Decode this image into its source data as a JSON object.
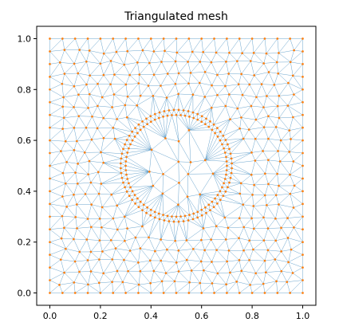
{
  "chart_data": {
    "type": "scatter",
    "subtype": "triangulated-mesh",
    "title": "Triangulated mesh",
    "xlabel": "",
    "ylabel": "",
    "xlim": [
      0.0,
      1.0
    ],
    "ylim": [
      0.0,
      1.0
    ],
    "x_ticks": [
      "0.0",
      "0.2",
      "0.4",
      "0.6",
      "0.8",
      "1.0"
    ],
    "y_ticks": [
      "0.0",
      "0.2",
      "0.4",
      "0.6",
      "0.8",
      "1.0"
    ],
    "grid": false,
    "legend": "none",
    "colors": {
      "edges": "#1f77b4",
      "nodes": "#ff7f0e",
      "axes": "#000000",
      "background": "#ffffff"
    },
    "mesh": {
      "domain": "unit square [0, 1] x [0, 1]",
      "boundary_nodes_per_side": 21,
      "hole_center": [
        0.5,
        0.5
      ],
      "refined_circle_radii": [
        0.2,
        0.22
      ],
      "refined_circle_nodes": 72,
      "approx_element_size": 0.05
    }
  }
}
